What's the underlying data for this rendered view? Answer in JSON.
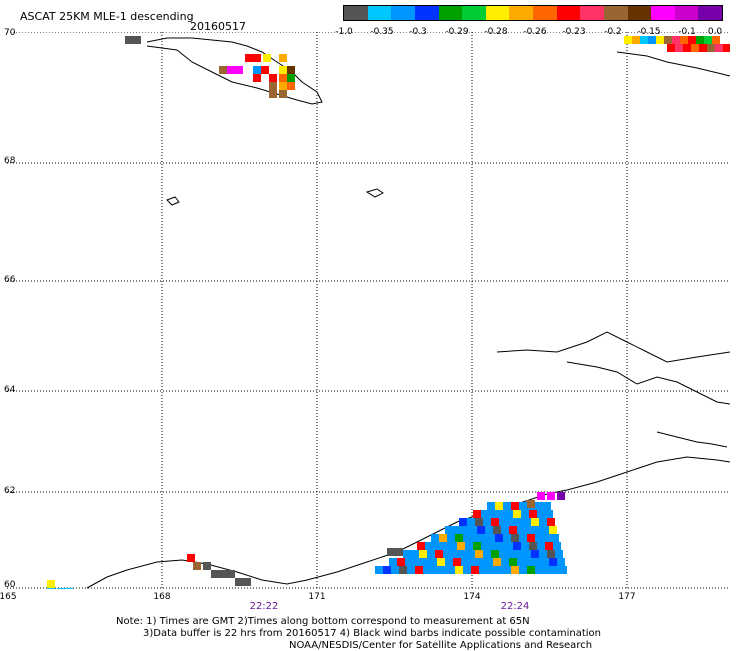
{
  "header": {
    "title": "ASCAT 25KM MLE-1 descending",
    "date": "20160517"
  },
  "legend": {
    "colors": [
      "#555555",
      "#00c8ff",
      "#0096ff",
      "#0033ff",
      "#00a000",
      "#00cc33",
      "#ffee00",
      "#ffaa00",
      "#ff6600",
      "#ff0000",
      "#ff3366",
      "#996633",
      "#663300",
      "#ff00ff",
      "#cc00cc",
      "#7700aa"
    ],
    "tick_labels": [
      "-1.0",
      "-0.35",
      "-0.3",
      "-0.29",
      "-0.28",
      "-0.26",
      "-0.23",
      "-0.2",
      "-0.15",
      "-0.1",
      "0.0"
    ]
  },
  "axes": {
    "lat_labels": [
      "70",
      "68",
      "66",
      "64",
      "62",
      "60"
    ],
    "lon_labels": [
      "165",
      "168",
      "171",
      "174",
      "177"
    ],
    "time_labels": [
      "22:22",
      "22:24"
    ]
  },
  "footer": {
    "note_line1": "Note: 1) Times are GMT 2)Times along bottom correspond to measurement at 65N",
    "note_line2": "3)Data buffer is 22 hrs from 20160517 4) Black wind barbs indicate possible contamination",
    "note_line3": "NOAA/NESDIS/Center for Satellite Applications and Research"
  }
}
